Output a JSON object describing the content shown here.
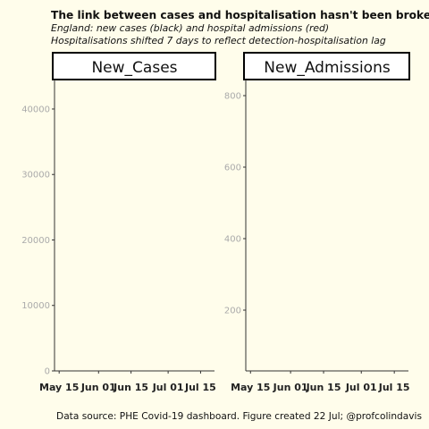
{
  "title": "The link between cases and hospitalisation hasn't been broken",
  "subtitle_lines": [
    "England: new cases (black) and hospital admissions (red)",
    "Hospitalisations shifted 7 days to reflect detection-hospitalisation lag"
  ],
  "caption": "Data source: PHE Covid-19 dashboard. Figure created 22 Jul; @profcolindavis",
  "colors": {
    "background": "#fffdeb",
    "cases": "#000000",
    "admissions": "#ff0000",
    "tick_label": "#aaaaaa"
  },
  "chart_data": [
    {
      "type": "line",
      "panel": "New_Cases",
      "x_ticks": [
        "May 15",
        "Jun 01",
        "Jun 15",
        "Jul 01",
        "Jul 15"
      ],
      "x_tick_dates": [
        "2021-05-15",
        "2021-06-01",
        "2021-06-15",
        "2021-07-01",
        "2021-07-15"
      ],
      "xlim": [
        "2021-05-13",
        "2021-07-21"
      ],
      "y_ticks": [
        0,
        10000,
        20000,
        30000,
        40000
      ],
      "ylim": [
        0,
        44500
      ],
      "series": [],
      "grid": false
    },
    {
      "type": "line",
      "panel": "New_Admissions",
      "x_ticks": [
        "May 15",
        "Jun 01",
        "Jun 15",
        "Jul 01",
        "Jul 15"
      ],
      "x_tick_dates": [
        "2021-05-15",
        "2021-06-01",
        "2021-06-15",
        "2021-07-01",
        "2021-07-15"
      ],
      "xlim": [
        "2021-05-13",
        "2021-07-21"
      ],
      "y_ticks": [
        200,
        400,
        600,
        800
      ],
      "ylim": [
        30,
        845
      ],
      "series": [],
      "grid": false
    }
  ]
}
